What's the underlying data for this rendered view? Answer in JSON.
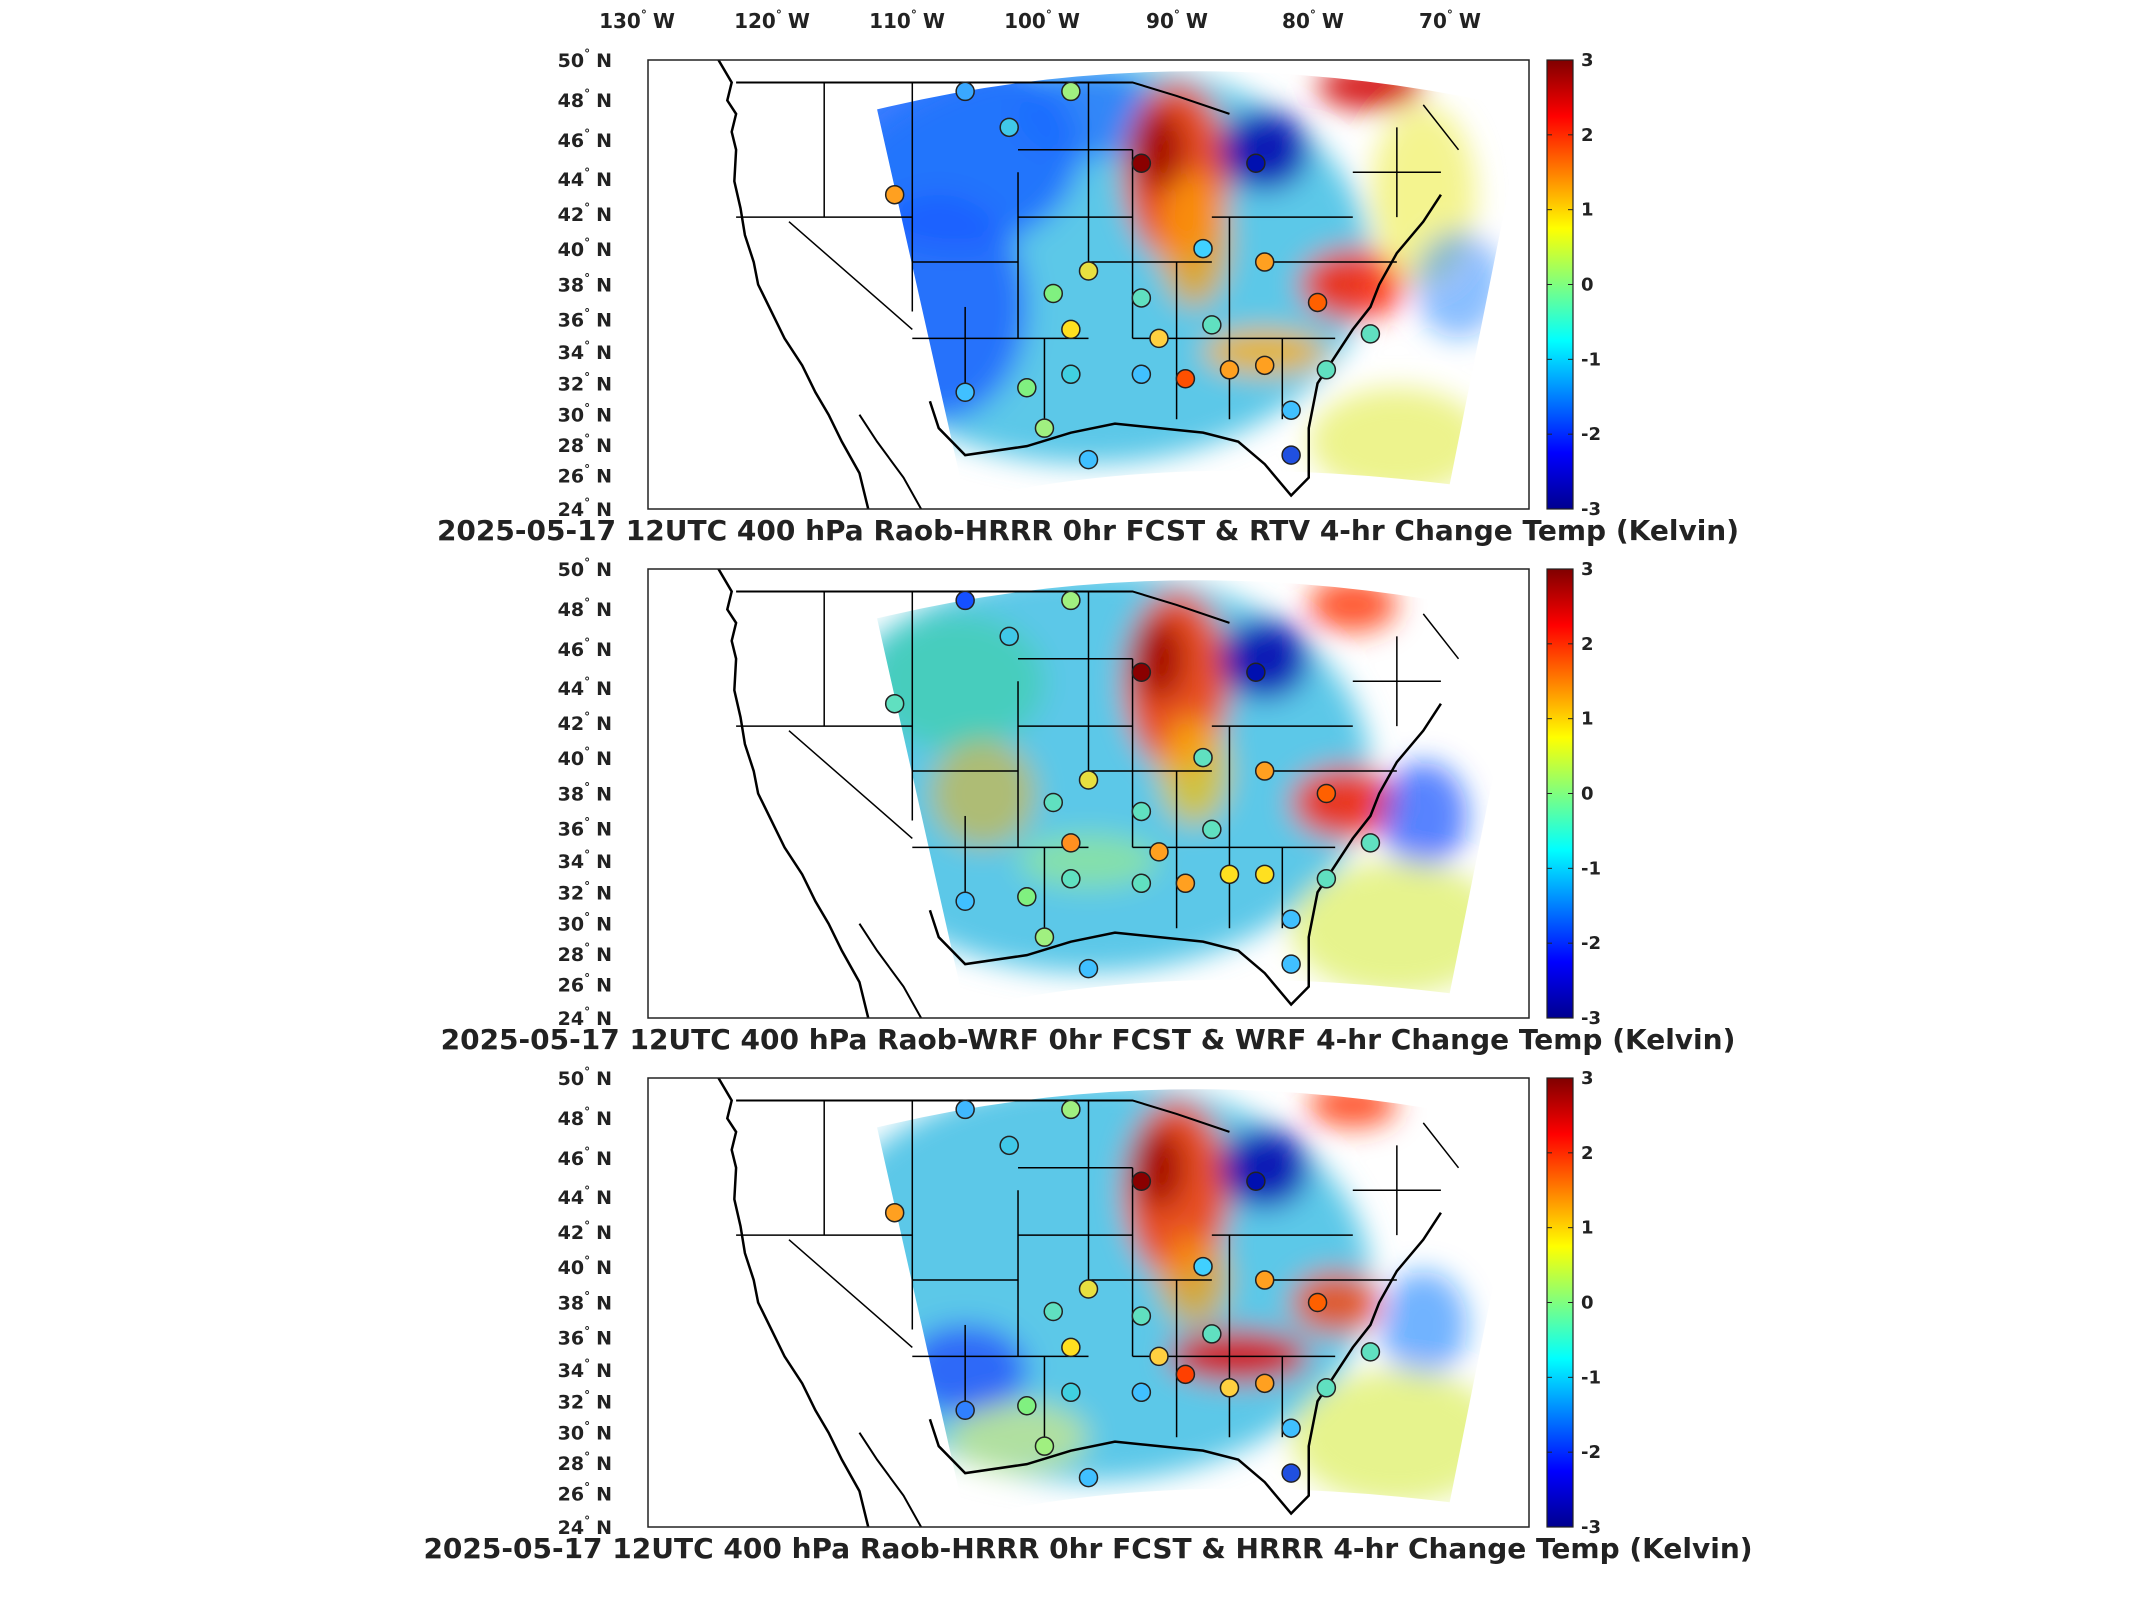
{
  "lon_labels": [
    "130",
    "120",
    "110",
    "100",
    "90",
    "80",
    "70"
  ],
  "lon_suffix": "W",
  "lat_labels": [
    "50",
    "48",
    "46",
    "44",
    "42",
    "40",
    "38",
    "36",
    "34",
    "32",
    "30",
    "28",
    "26",
    "24"
  ],
  "lat_suffix": "N",
  "colorbar": {
    "ticks": [
      "3",
      "2",
      "1",
      "0",
      "-1",
      "-2",
      "-3"
    ],
    "min": -3,
    "max": 3,
    "colormap": "jet"
  },
  "panels": [
    {
      "title": "2025-05-17 12UTC 400 hPa Raob-HRRR 0hr FCST & RTV 4-hr Change Temp (Kelvin)"
    },
    {
      "title": "2025-05-17 12UTC 400 hPa Raob-WRF 0hr FCST & WRF 4-hr Change Temp (Kelvin)"
    },
    {
      "title": "2025-05-17 12UTC 400 hPa Raob-HRRR 0hr FCST & HRRR 4-hr Change Temp (Kelvin)"
    }
  ],
  "colors": {
    "jet_dark_blue": "#00008f",
    "jet_blue": "#0000ff",
    "jet_cyan": "#00ffff",
    "jet_yellow": "#ffff00",
    "jet_red": "#ff0000",
    "jet_dark_red": "#800000",
    "field_base": "#5cc8e8"
  }
}
